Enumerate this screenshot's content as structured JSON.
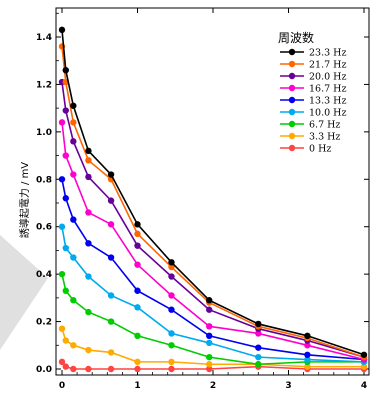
{
  "chart_data": {
    "type": "line",
    "title": "",
    "xlabel": "",
    "ylabel": "誘導起電力 / mV",
    "xlim": [
      0,
      4
    ],
    "ylim": [
      -0.02,
      1.5
    ],
    "x_ticks": [
      0,
      1,
      2,
      3,
      4
    ],
    "x_tick_labels": [
      "0",
      "1",
      "2",
      "3",
      "4"
    ],
    "y_ticks": [
      0.0,
      0.2,
      0.4,
      0.6,
      0.8,
      1.0,
      1.2,
      1.4
    ],
    "y_tick_labels": [
      "0.0",
      "0.2",
      "0.4",
      "0.6",
      "0.8",
      "1.0",
      "1.2",
      "1.4"
    ],
    "grid": false,
    "legend_title": "周波数",
    "legend_position": "top-right",
    "x": [
      0,
      0.05,
      0.15,
      0.35,
      0.65,
      1.0,
      1.45,
      1.95,
      2.6,
      3.25,
      4.0
    ],
    "series": [
      {
        "name": "23.3 Hz",
        "color": "#000000",
        "values": [
          1.43,
          1.26,
          1.11,
          0.92,
          0.82,
          0.61,
          0.45,
          0.29,
          0.19,
          0.14,
          0.06
        ]
      },
      {
        "name": "21.7 Hz",
        "color": "#ff6600",
        "values": [
          1.36,
          1.21,
          1.04,
          0.88,
          0.8,
          0.57,
          0.43,
          0.28,
          0.18,
          0.13,
          0.05
        ]
      },
      {
        "name": "20.0 Hz",
        "color": "#660099",
        "values": [
          1.21,
          1.09,
          0.96,
          0.81,
          0.71,
          0.52,
          0.39,
          0.25,
          0.17,
          0.12,
          0.05
        ]
      },
      {
        "name": "16.7 Hz",
        "color": "#ff00cc",
        "values": [
          1.04,
          0.9,
          0.82,
          0.66,
          0.61,
          0.44,
          0.31,
          0.18,
          0.15,
          0.1,
          0.04
        ]
      },
      {
        "name": "13.3 Hz",
        "color": "#0000ee",
        "values": [
          0.8,
          0.72,
          0.63,
          0.53,
          0.47,
          0.33,
          0.25,
          0.14,
          0.09,
          0.06,
          0.04
        ]
      },
      {
        "name": "10.0 Hz",
        "color": "#00aaee",
        "values": [
          0.6,
          0.51,
          0.47,
          0.39,
          0.31,
          0.26,
          0.15,
          0.11,
          0.05,
          0.04,
          0.03
        ]
      },
      {
        "name": "6.7 Hz",
        "color": "#00cc00",
        "values": [
          0.4,
          0.33,
          0.29,
          0.24,
          0.2,
          0.14,
          0.1,
          0.05,
          0.02,
          0.03,
          0.03
        ]
      },
      {
        "name": "3.3 Hz",
        "color": "#ffaa00",
        "values": [
          0.17,
          0.12,
          0.1,
          0.08,
          0.07,
          0.03,
          0.03,
          0.02,
          0.02,
          0.01,
          0.01
        ]
      },
      {
        "name": "0 Hz",
        "color": "#ff4444",
        "values": [
          0.03,
          0.01,
          0.0,
          0.0,
          0.0,
          0.0,
          0.0,
          0.0,
          0.01,
          0.0,
          0.0
        ]
      }
    ]
  }
}
